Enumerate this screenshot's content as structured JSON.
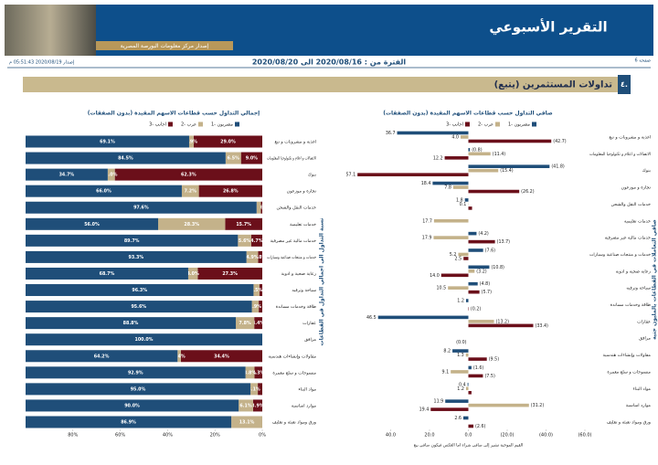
{
  "header": {
    "title": "التقرير الأسبوعي",
    "subtitle": "إصدار مركز معلومات البورصة المصرية",
    "page": "صفحة 6",
    "period": "الفترة من : 2020/08/16 الى 2020/08/20",
    "issued": "إصدار 2020/08/19 05:51:43 م"
  },
  "section": {
    "number": "٤.",
    "title": "تداولات المستثمرين (يتبع)"
  },
  "chart_data": [
    {
      "type": "bar",
      "stacked": true,
      "title": "إجمالي التداول حسب قطاعات الاسهم المقيدة (بدون الصفقات)",
      "ylabel": "نسبة التداول الى اجمالي التداول في القطاعات",
      "categories": [
        "اغذية و مشروبات و تبغ",
        "الاتصالات و اعلام و تكنولوجيا المعلومات",
        "بنوك",
        "تجارة و موزعون",
        "خدمات النقل والشحن",
        "خدمات تعليمية",
        "خدمات مالية غير مصرفية",
        "خدمات و منتجات صناعية وسيارات",
        "رعاية صحية و ادوية",
        "سياحة وترفيه",
        "طاقة وخدمات مساندة",
        "عقارات",
        "مرافق",
        "مقاولات وإنشاءات هندسية",
        "منسوجات و سلع معمرة",
        "مواد البناء",
        "موارد اساسية",
        "ورق ومواد تعبئة و تغليف"
      ],
      "series": [
        {
          "name": "مصريون -1",
          "color": "#1f4e79",
          "values": [
            69.1,
            84.5,
            34.7,
            66.0,
            97.6,
            56.0,
            89.7,
            93.3,
            68.7,
            96.3,
            95.6,
            88.8,
            100.0,
            64.2,
            92.9,
            95.0,
            90.0,
            86.9
          ],
          "value_labels": [
            "69.1%",
            "84.5%",
            "34.7%",
            "66.0%",
            "97.6%",
            "56.0%",
            "89.7%",
            "93.3%",
            "68.7%",
            "96.3%",
            "95.6%",
            "88.8%",
            "100.0%",
            "64.2%",
            "92.9%",
            "95.0%",
            "90.0%",
            "86.9%"
          ]
        },
        {
          "name": "عرب -2",
          "color": "#c4b28a",
          "values": [
            1.9,
            6.5,
            3.0,
            7.2,
            1.8,
            28.3,
            5.6,
            4.9,
            4.0,
            2.5,
            2.9,
            7.8,
            0.0,
            1.4,
            3.8,
            3.1,
            6.1,
            13.1
          ],
          "value_labels": [
            "1.9%",
            "6.5%",
            "3.0%",
            "7.2%",
            null,
            "28.3%",
            "5.6%",
            "4.9%",
            "4.0%",
            "2.5%",
            "2.9%",
            "7.8%",
            null,
            "1.4%",
            "3.8%",
            "3.1%",
            "6.1%",
            "13.1%"
          ]
        },
        {
          "name": "اجانب -3",
          "color": "#6b0f1a",
          "values": [
            29.0,
            9.0,
            62.3,
            26.8,
            0.6,
            15.7,
            4.7,
            1.8,
            27.3,
            1.2,
            1.5,
            3.4,
            0.0,
            34.4,
            3.3,
            1.9,
            3.9,
            0.0
          ],
          "value_labels": [
            "29.0%",
            "9.0%",
            "62.3%",
            "26.8%",
            "0.6%",
            "15.7%",
            "4.7%",
            "1.8%",
            "27.3%",
            null,
            null,
            "3.4%",
            "0.0%",
            "34.4%",
            "3.3%",
            null,
            "3.9%",
            null
          ]
        }
      ],
      "xlim": [
        100,
        0
      ],
      "xticks": [
        {
          "value": 80,
          "label": "80%"
        },
        {
          "value": 60,
          "label": "60%"
        },
        {
          "value": 40,
          "label": "40%"
        },
        {
          "value": 20,
          "label": "20%"
        },
        {
          "value": 0,
          "label": "0%"
        }
      ]
    },
    {
      "type": "bar",
      "stacked": false,
      "title": "صافي التداول حسب قطاعات الاسهم المقيدة (بدون الصفقات)",
      "ylabel": "صافي التعاملات في القطاعات بالمليون جنيه",
      "note": "القيم الموجبة تشير إلى صافي شراء اما العكس فيكون صافي بيع",
      "categories": [
        "اغذية و مشروبات و تبغ",
        "الاتصالات و اعلام و تكنولوجيا المعلومات",
        "بنوك",
        "تجارة و موزعون",
        "خدمات النقل والشحن",
        "خدمات تعليمية",
        "خدمات مالية غير مصرفية",
        "خدمات و منتجات صناعية وسيارات",
        "رعاية صحية و ادوية",
        "سياحة وترفيه",
        "طاقة وخدمات مساندة",
        "عقارات",
        "مرافق",
        "مقاولات وإنشاءات هندسية",
        "منسوجات و سلع معمرة",
        "مواد البناء",
        "موارد اساسية",
        "ورق ومواد تعبئة و تغليف"
      ],
      "series": [
        {
          "name": "مصريون -1",
          "color": "#1f4e79",
          "values": [
            36.7,
            -0.8,
            -41.8,
            18.4,
            1.8,
            0.0,
            -4.2,
            -7.6,
            -10.8,
            -4.8,
            1.2,
            46.5,
            0.0,
            8.2,
            -1.6,
            0.4,
            11.9,
            2.6
          ],
          "value_labels": [
            "36.7",
            "(0.8)",
            "(41.8)",
            "18.4",
            "1.8",
            null,
            "(4.2)",
            "(7.6)",
            "(10.8)",
            "(4.8)",
            "1.2",
            "46.5",
            null,
            "8.2",
            "(1.6)",
            "0.4",
            "11.9",
            "2.6"
          ]
        },
        {
          "name": "عرب -2",
          "color": "#c4b28a",
          "values": [
            4.0,
            -11.4,
            -15.4,
            7.8,
            0.1,
            17.7,
            17.9,
            5.2,
            -3.2,
            10.5,
            0.0,
            -13.2,
            0.0,
            1.3,
            9.1,
            1.2,
            -31.2,
            0.0
          ],
          "value_labels": [
            "4.0",
            "(11.4)",
            "(15.4)",
            "7.8",
            "0.1",
            "17.7",
            "17.9",
            "5.2",
            "(3.2)",
            "10.5",
            null,
            "(13.2)",
            null,
            "1.3",
            "9.1",
            "1.2",
            "(31.2)",
            null
          ]
        },
        {
          "name": "اجانب -3",
          "color": "#6b0f1a",
          "values": [
            -42.7,
            12.2,
            57.1,
            -26.2,
            -1.9,
            0.0,
            -13.7,
            2.5,
            14.0,
            -5.7,
            -0.2,
            -33.4,
            0.0,
            -9.5,
            -7.5,
            -1.6,
            19.4,
            -2.6
          ],
          "value_labels": [
            "(42.7)",
            "12.2",
            "57.1",
            "(26.2)",
            null,
            null,
            "(13.7)",
            "2.5",
            "14.0",
            "(5.7)",
            "(0.2)",
            "(33.4)",
            "(0.0)",
            "(9.5)",
            "(7.5)",
            null,
            "19.4",
            "(2.6)"
          ]
        }
      ],
      "xlim": [
        60,
        -60
      ],
      "xticks": [
        {
          "value": 40,
          "label": "40.0"
        },
        {
          "value": 20,
          "label": "20.0"
        },
        {
          "value": 0,
          "label": "0.0"
        },
        {
          "value": -20,
          "label": "(20.0)"
        },
        {
          "value": -40,
          "label": "(40.0)"
        },
        {
          "value": -60,
          "label": "(60.0)"
        }
      ]
    }
  ]
}
